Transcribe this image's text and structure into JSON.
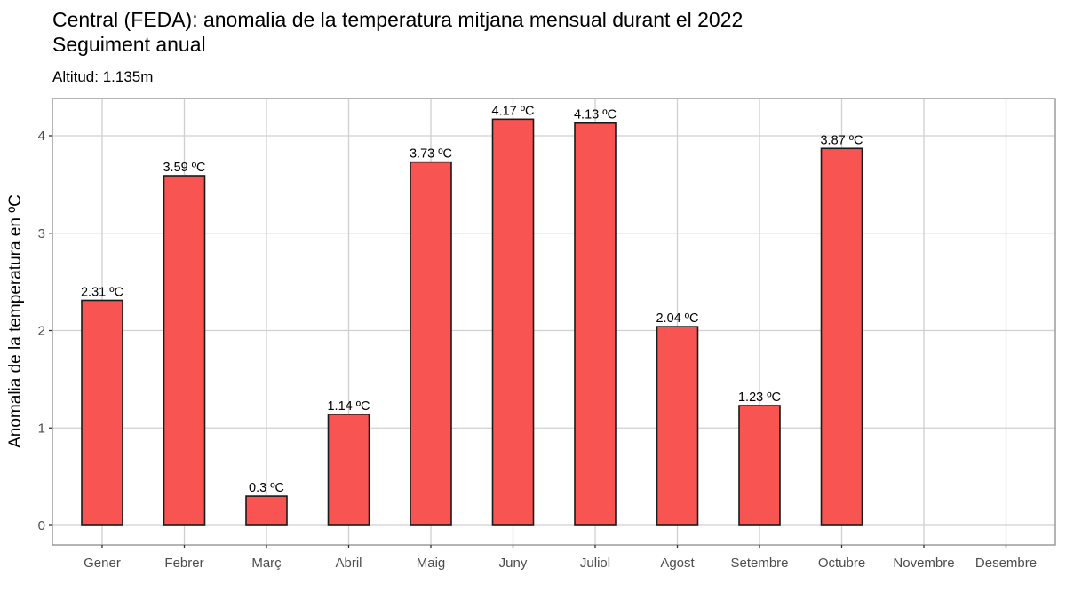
{
  "header": {
    "title": "Central (FEDA): anomalia de la temperatura mitjana mensual durant el 2022",
    "subtitle": "Seguiment anual",
    "caption": "Altitud: 1.135m"
  },
  "axes": {
    "ylabel": "Anomalia de la temperatura en ºC",
    "yticks": [
      "0",
      "1",
      "2",
      "3",
      "4"
    ]
  },
  "colors": {
    "bar_fill": "#F85451",
    "bar_stroke": "#1a1a1a",
    "grid": "#d0d0d0",
    "panel_border": "#8c8c8c"
  },
  "chart_data": {
    "type": "bar",
    "title": "Central (FEDA): anomalia de la temperatura mitjana mensual durant el 2022",
    "subtitle": "Seguiment anual",
    "caption": "Altitud: 1.135m",
    "xlabel": "",
    "ylabel": "Anomalia de la temperatura en ºC",
    "categories": [
      "Gener",
      "Febrer",
      "Març",
      "Abril",
      "Maig",
      "Juny",
      "Juliol",
      "Agost",
      "Setembre",
      "Octubre",
      "Novembre",
      "Desembre"
    ],
    "values": [
      2.31,
      3.59,
      0.3,
      1.14,
      3.73,
      4.17,
      4.13,
      2.04,
      1.23,
      3.87,
      null,
      null
    ],
    "labels": [
      "2.31 ºC",
      "3.59 ºC",
      "0.3 ºC",
      "1.14 ºC",
      "3.73 ºC",
      "4.17 ºC",
      "4.13 ºC",
      "2.04 ºC",
      "1.23 ºC",
      "3.87 ºC",
      "",
      ""
    ],
    "ylim": [
      -0.2,
      4.37
    ],
    "yticks": [
      0,
      1,
      2,
      3,
      4
    ],
    "grid": true,
    "legend": "none"
  }
}
